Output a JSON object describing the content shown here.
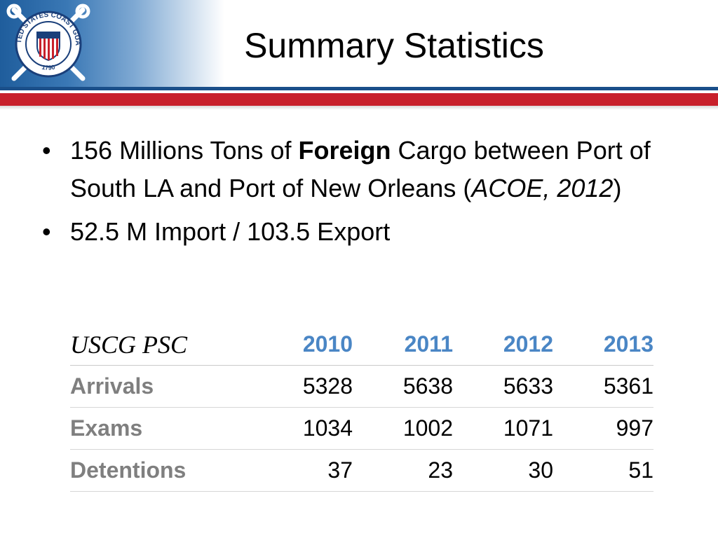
{
  "slide": {
    "title": "Summary Statistics",
    "logo": {
      "icon": "coast-guard-seal-icon",
      "ring_text": "UNITED STATES COAST GUARD",
      "year": "1790",
      "colors": {
        "ring": "#1a3f7a",
        "shield_red": "#c8202b",
        "shield_blue": "#1a3f7a"
      }
    },
    "stripes": {
      "blue": "#1a4f8a",
      "red": "#c8202b"
    }
  },
  "bullets": [
    {
      "parts": [
        {
          "text": "156 Millions Tons of "
        },
        {
          "text": "Foreign",
          "style": "bold"
        },
        {
          "text": " Cargo between Port of South LA and Port of New Orleans ("
        },
        {
          "text": "ACOE, 2012",
          "style": "italic"
        },
        {
          "text": ")"
        }
      ]
    },
    {
      "parts": [
        {
          "text": "52.5 M Import / 103.5 Export"
        }
      ]
    }
  ],
  "bullet_glyph": "•",
  "table": {
    "header_label": "USCG PSC",
    "years": [
      "2010",
      "2011",
      "2012",
      "2013"
    ],
    "rows": [
      {
        "label": "Arrivals",
        "values": [
          "5328",
          "5638",
          "5633",
          "5361"
        ]
      },
      {
        "label": "Exams",
        "values": [
          "1034",
          "1002",
          "1071",
          "997"
        ]
      },
      {
        "label": "Detentions",
        "values": [
          "37",
          "23",
          "30",
          "51"
        ]
      }
    ],
    "colors": {
      "year_header": "#4a86c5",
      "row_label": "#7f7f7f"
    }
  }
}
